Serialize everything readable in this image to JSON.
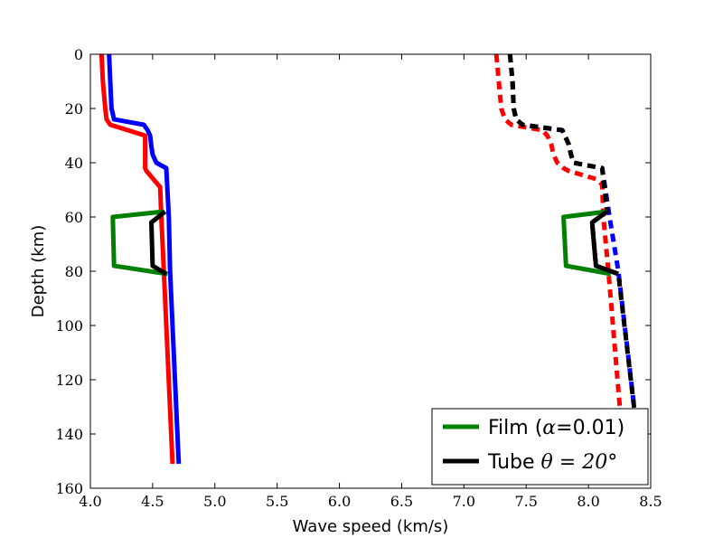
{
  "chart_data": {
    "type": "line",
    "title": "",
    "xlabel": "Wave speed (km/s)",
    "ylabel": "Depth (km)",
    "xlim": [
      4.0,
      8.5
    ],
    "ylim": [
      160,
      0
    ],
    "y_inverted": true,
    "xticks": [
      "4.0",
      "4.5",
      "5.0",
      "5.5",
      "6.0",
      "6.5",
      "7.0",
      "7.5",
      "8.0",
      "8.5"
    ],
    "yticks": [
      "0",
      "20",
      "40",
      "60",
      "80",
      "100",
      "120",
      "140",
      "160"
    ],
    "grid": false,
    "legend_position": "lower-right",
    "legend": [
      {
        "prefix": "Film (",
        "math": "α",
        "suffix": "=0.01)",
        "color": "#008000"
      },
      {
        "prefix": "Tube ",
        "math": "θ = 20°",
        "suffix": "",
        "color": "#000000"
      }
    ],
    "series": [
      {
        "color": "#ff0000",
        "dashed": false,
        "points": [
          [
            4.09,
            0
          ],
          [
            4.1,
            10
          ],
          [
            4.12,
            20
          ],
          [
            4.13,
            24
          ],
          [
            4.16,
            26
          ],
          [
            4.44,
            30
          ],
          [
            4.44,
            42
          ],
          [
            4.45,
            43
          ],
          [
            4.56,
            49
          ],
          [
            4.57,
            60
          ],
          [
            4.59,
            80
          ],
          [
            4.66,
            151
          ]
        ]
      },
      {
        "color": "#0000ff",
        "dashed": false,
        "points": [
          [
            4.15,
            0
          ],
          [
            4.16,
            10
          ],
          [
            4.17,
            20
          ],
          [
            4.19,
            24
          ],
          [
            4.43,
            26
          ],
          [
            4.46,
            28
          ],
          [
            4.48,
            30
          ],
          [
            4.49,
            34
          ],
          [
            4.5,
            37
          ],
          [
            4.53,
            40
          ],
          [
            4.61,
            42
          ],
          [
            4.63,
            60
          ],
          [
            4.64,
            80
          ],
          [
            4.71,
            151
          ]
        ]
      },
      {
        "color": "#008000",
        "dashed": false,
        "points": [
          [
            4.59,
            58
          ],
          [
            4.18,
            60
          ],
          [
            4.19,
            78
          ],
          [
            4.62,
            81
          ]
        ]
      },
      {
        "color": "#000000",
        "dashed": false,
        "points": [
          [
            4.6,
            58
          ],
          [
            4.49,
            62
          ],
          [
            4.5,
            78
          ],
          [
            4.61,
            81
          ]
        ]
      },
      {
        "color": "#ff0000",
        "dashed": true,
        "points": [
          [
            7.26,
            0
          ],
          [
            7.28,
            10
          ],
          [
            7.3,
            20
          ],
          [
            7.33,
            24
          ],
          [
            7.38,
            26
          ],
          [
            7.63,
            28
          ],
          [
            7.67,
            30
          ],
          [
            7.7,
            33
          ],
          [
            7.72,
            37
          ],
          [
            7.75,
            40
          ],
          [
            7.8,
            42
          ],
          [
            7.84,
            43
          ],
          [
            8.06,
            46
          ],
          [
            8.11,
            48
          ],
          [
            8.12,
            60
          ],
          [
            8.16,
            80
          ],
          [
            8.29,
            151
          ]
        ]
      },
      {
        "color": "#0000ff",
        "dashed": true,
        "points": [
          [
            7.37,
            0
          ],
          [
            7.39,
            10
          ],
          [
            7.4,
            20
          ],
          [
            7.42,
            24
          ],
          [
            7.47,
            26
          ],
          [
            7.79,
            28
          ],
          [
            7.81,
            30
          ],
          [
            7.84,
            33
          ],
          [
            7.86,
            37
          ],
          [
            7.88,
            40
          ],
          [
            8.11,
            42
          ],
          [
            8.17,
            60
          ],
          [
            8.24,
            80
          ],
          [
            8.42,
            151
          ]
        ]
      },
      {
        "color": "#000000",
        "dashed": true,
        "points": [
          [
            7.37,
            0
          ],
          [
            7.39,
            10
          ],
          [
            7.4,
            20
          ],
          [
            7.42,
            24
          ],
          [
            7.47,
            26
          ],
          [
            7.79,
            28
          ],
          [
            7.81,
            30
          ],
          [
            7.84,
            33
          ],
          [
            7.86,
            37
          ],
          [
            7.88,
            40
          ],
          [
            8.11,
            42
          ],
          [
            8.15,
            58
          ],
          [
            8.03,
            62
          ],
          [
            8.06,
            78
          ],
          [
            8.24,
            81
          ],
          [
            8.42,
            151
          ]
        ]
      },
      {
        "color": "#008000",
        "dashed": false,
        "points": [
          [
            8.15,
            58
          ],
          [
            7.8,
            60
          ],
          [
            7.82,
            78
          ],
          [
            8.18,
            81
          ]
        ]
      },
      {
        "color": "#000000",
        "dashed": false,
        "points": [
          [
            8.15,
            58
          ],
          [
            8.03,
            62
          ],
          [
            8.06,
            78
          ],
          [
            8.24,
            81
          ]
        ]
      }
    ]
  }
}
